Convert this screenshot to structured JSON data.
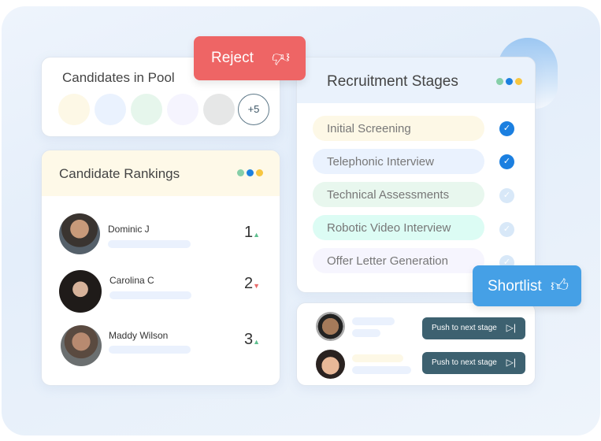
{
  "pool": {
    "title": "Candidates in Pool",
    "more": "+5",
    "colors": [
      "#fdf8e6",
      "#eaf2fe",
      "#e6f6ec",
      "#f5f4fe",
      "#e6e7e7"
    ]
  },
  "rankings": {
    "title": "Candidate Rankings",
    "items": [
      {
        "name": "Dominic J",
        "rank": "1",
        "trend": "up"
      },
      {
        "name": "Carolina C",
        "rank": "2",
        "trend": "down"
      },
      {
        "name": "Maddy Wilson",
        "rank": "3",
        "trend": "up"
      }
    ]
  },
  "stages": {
    "title": "Recruitment Stages",
    "items": [
      {
        "label": "Initial Screening",
        "done": true,
        "color": "#fdf8e6"
      },
      {
        "label": "Telephonic Interview",
        "done": true,
        "color": "#eaf2fe"
      },
      {
        "label": "Technical Assessments",
        "done": false,
        "color": "#e8f7ee"
      },
      {
        "label": "Robotic Video Interview",
        "done": false,
        "color": "#dcfcf4"
      },
      {
        "label": "Offer Letter Generation",
        "done": false,
        "color": "#f6f5fe"
      }
    ]
  },
  "push": {
    "label": "Push to next stage"
  },
  "reject": {
    "label": "Reject",
    "color": "#ee6565"
  },
  "shortlist": {
    "label": "Shortlist",
    "color": "#45a0e6"
  },
  "dot_colors": [
    "#86cfa8",
    "#1b7fe0",
    "#f7c640"
  ]
}
